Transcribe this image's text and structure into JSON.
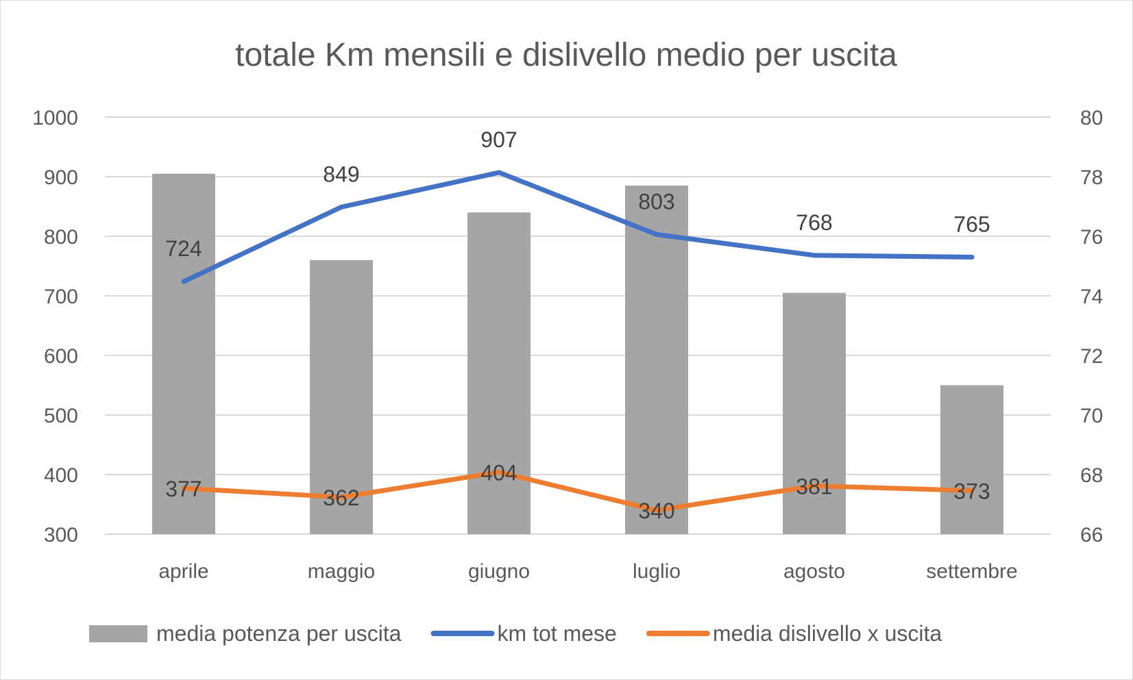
{
  "chart_data": {
    "type": "bar",
    "title": "totale Km mensili e dislivello medio per uscita",
    "categories": [
      "aprile",
      "maggio",
      "giugno",
      "luglio",
      "agosto",
      "settembre"
    ],
    "left_axis": {
      "min": 300,
      "max": 1000,
      "step": 100,
      "ticks": [
        "300",
        "400",
        "500",
        "600",
        "700",
        "800",
        "900",
        "1000"
      ]
    },
    "right_axis": {
      "min": 66,
      "max": 80,
      "step": 2,
      "ticks": [
        "66",
        "68",
        "70",
        "72",
        "74",
        "76",
        "78",
        "80"
      ]
    },
    "grid": true,
    "legend_position": "bottom",
    "series": [
      {
        "name": "media potenza per uscita",
        "kind": "bar",
        "axis": "right",
        "color": "#a5a5a5",
        "values": [
          78.1,
          75.2,
          76.8,
          77.7,
          74.1,
          71.0
        ],
        "data_labels": false
      },
      {
        "name": "km tot mese",
        "kind": "line",
        "axis": "left",
        "color": "#4472c4",
        "values": [
          724,
          849,
          907,
          803,
          768,
          765
        ],
        "labels": [
          "724",
          "849",
          "907",
          "803",
          "768",
          "765"
        ],
        "data_labels": true
      },
      {
        "name": "media dislivello x uscita",
        "kind": "line",
        "axis": "left",
        "color": "#ed7d31",
        "values": [
          377,
          362,
          404,
          340,
          381,
          373
        ],
        "labels": [
          "377",
          "362",
          "404",
          "340",
          "381",
          "373"
        ],
        "data_labels": true
      }
    ]
  }
}
